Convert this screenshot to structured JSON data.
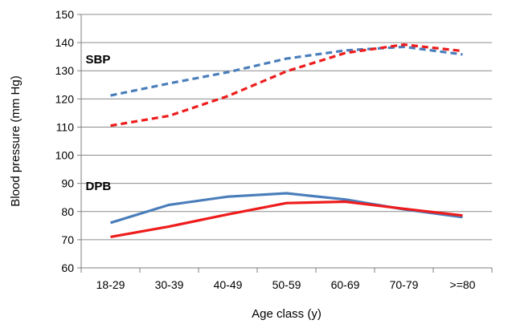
{
  "chart_data": {
    "type": "line",
    "title": "",
    "xlabel": "Age class (y)",
    "ylabel": "Blood pressure (mm Hg)",
    "categories": [
      "18-29",
      "30-39",
      "40-49",
      "50-59",
      "60-69",
      "70-79",
      ">=80"
    ],
    "ylim": [
      60,
      150
    ],
    "yticks": [
      60,
      70,
      80,
      90,
      100,
      110,
      120,
      130,
      140,
      150
    ],
    "grid": "horizontal",
    "legend": "none",
    "series": [
      {
        "values": [
          121.2,
          125.5,
          129.5,
          134.3,
          137.2,
          138.5,
          135.8
        ],
        "color": "#4a7ebb",
        "style": "dashed",
        "group": "SBP"
      },
      {
        "values": [
          110.5,
          114.0,
          121.0,
          129.8,
          136.3,
          139.3,
          137.0
        ],
        "color": "#ee1c1c",
        "style": "dashed",
        "group": "SBP"
      },
      {
        "values": [
          76.0,
          82.4,
          85.3,
          86.5,
          84.3,
          80.8,
          78.0
        ],
        "color": "#4a7ebb",
        "style": "solid",
        "group": "DPB"
      },
      {
        "values": [
          71.0,
          74.7,
          79.0,
          83.0,
          83.5,
          81.0,
          78.6
        ],
        "color": "#ee1c1c",
        "style": "solid",
        "group": "DPB"
      }
    ],
    "annotations": [
      {
        "text": "SBP",
        "x": "18-29",
        "y": 134
      },
      {
        "text": "DPB",
        "x": "18-29",
        "y": 89
      }
    ]
  }
}
